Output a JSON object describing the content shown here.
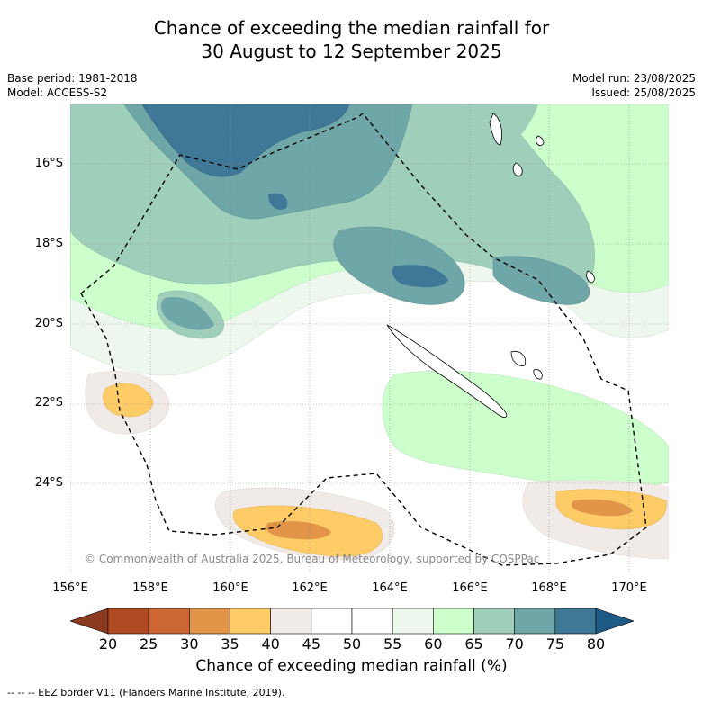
{
  "title_line1": "Chance of exceeding the median rainfall for",
  "title_line2": "30 August to 12 September 2025",
  "base_period": "Base period: 1981-2018",
  "model": "Model: ACCESS-S2",
  "model_run": "Model run: 23/08/2025",
  "issued": "Issued: 25/08/2025",
  "lat_labels": [
    "16°S",
    "18°S",
    "20°S",
    "22°S",
    "24°S"
  ],
  "lon_labels": [
    "156°E",
    "158°E",
    "160°E",
    "162°E",
    "164°E",
    "166°E",
    "168°E",
    "170°E"
  ],
  "copyright": "© Commonwealth of Australia 2025, Bureau of Meteorology, supported by COSPPac",
  "colorbar": {
    "ticks": [
      "20",
      "25",
      "30",
      "35",
      "40",
      "45",
      "50",
      "55",
      "60",
      "65",
      "70",
      "75",
      "80"
    ],
    "colors": [
      "#8b3a1f",
      "#b14a22",
      "#cc6633",
      "#e29448",
      "#fdcc66",
      "#f1ebe8",
      "#ffffff",
      "#ffffff",
      "#edf7ed",
      "#ccffcc",
      "#9fcfbb",
      "#6fa6a8",
      "#3f7896",
      "#1d5a86"
    ],
    "title": "Chance of exceeding median rainfall (%)"
  },
  "footnote": "--  --  -- EEZ border V11 (Flanders Marine Institute, 2019)."
}
